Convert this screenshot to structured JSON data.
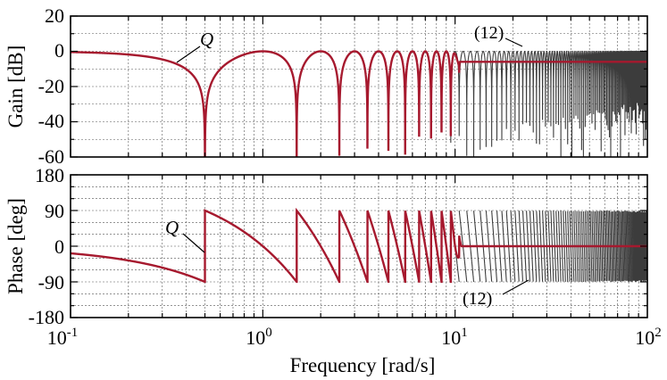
{
  "chart_data": [
    {
      "type": "line",
      "panel": "gain",
      "ylabel": "Gain [dB]",
      "xlabel": "",
      "x_scale": "log",
      "xlim": [
        0.1,
        100
      ],
      "ylim": [
        -60,
        20
      ],
      "yticks": [
        "20",
        "0",
        "-20",
        "-40",
        "-60"
      ],
      "grid": true,
      "series": [
        {
          "label": "Q",
          "color": "#a6192e",
          "description_points": [
            {
              "x": 0.1,
              "y": 0
            },
            {
              "x": 0.3,
              "y": -3
            },
            {
              "x": 0.5,
              "y": -60
            },
            {
              "x": 1.0,
              "y": 0
            },
            {
              "x": 1.5,
              "y": -60
            },
            {
              "x": 2.0,
              "y": 0
            },
            {
              "x": 2.5,
              "y": -60
            },
            {
              "x": 10,
              "y": -6
            },
            {
              "x": 100,
              "y": -6
            }
          ]
        },
        {
          "label": "(12)",
          "color": "#3c3c3c",
          "description_points": [
            {
              "x": 10,
              "y": 0
            },
            {
              "x": 30,
              "y": -60
            },
            {
              "x": 100,
              "y": 0
            }
          ]
        }
      ],
      "annotations": [
        "Q",
        "(12)"
      ]
    },
    {
      "type": "line",
      "panel": "phase",
      "ylabel": "Phase [deg]",
      "xlabel": "Frequency [rad/s]",
      "x_scale": "log",
      "xlim": [
        0.1,
        100
      ],
      "ylim": [
        -180,
        180
      ],
      "xticks": [
        "10",
        "10",
        "10",
        "10"
      ],
      "xtick_exponents": [
        "-1",
        "0",
        "1",
        "2"
      ],
      "yticks": [
        "180",
        "90",
        "0",
        "-90",
        "-180"
      ],
      "grid": true,
      "series": [
        {
          "label": "Q",
          "color": "#a6192e",
          "description_points": [
            {
              "x": 0.1,
              "y": -18
            },
            {
              "x": 0.5,
              "y": -90
            },
            {
              "x": 0.5,
              "y": 90
            },
            {
              "x": 1.5,
              "y": -90
            },
            {
              "x": 10,
              "y": 0
            },
            {
              "x": 100,
              "y": 0
            }
          ]
        },
        {
          "label": "(12)",
          "color": "#3c3c3c",
          "description_points": [
            {
              "x": 10,
              "y": 90
            },
            {
              "x": 30,
              "y": -90
            },
            {
              "x": 100,
              "y": 90
            }
          ]
        }
      ],
      "annotations": [
        "Q",
        "(12)"
      ]
    }
  ]
}
